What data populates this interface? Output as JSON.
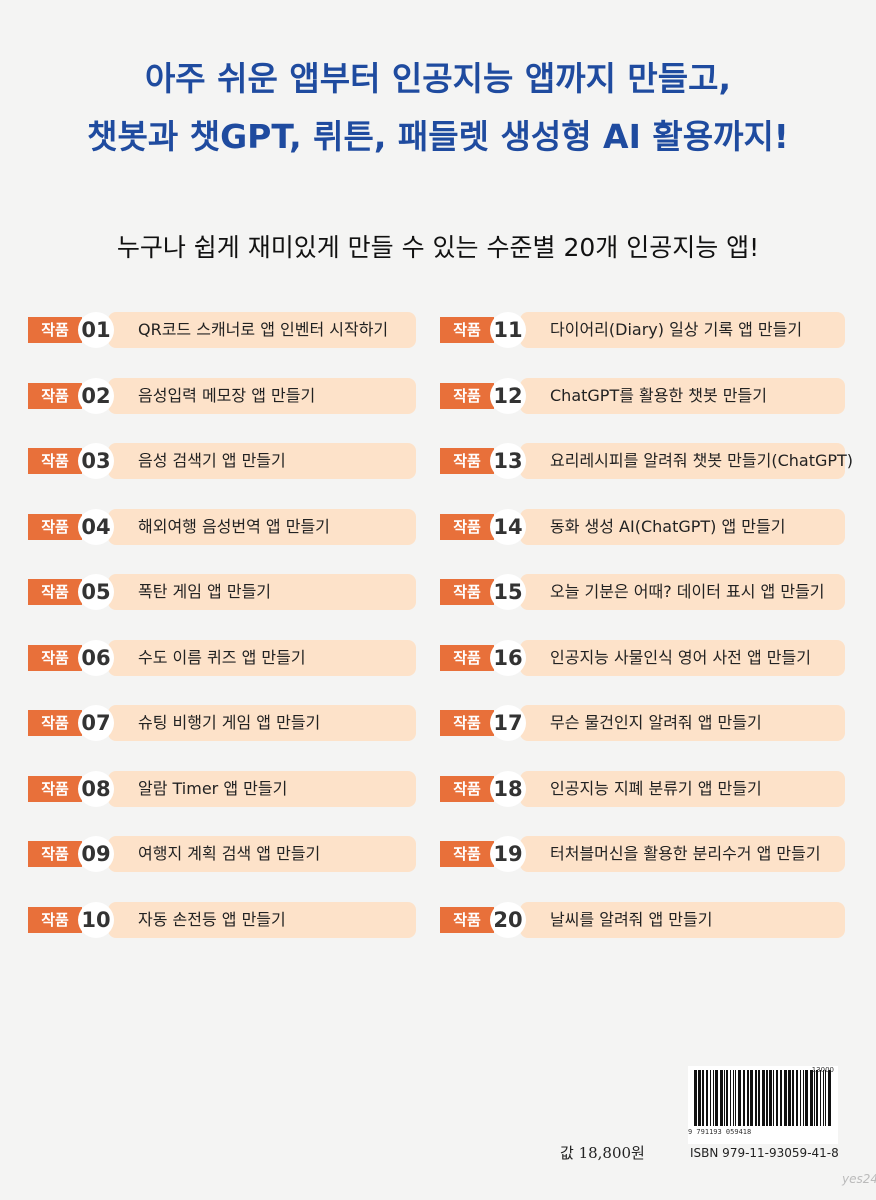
{
  "header": {
    "title_lines": [
      "아주 쉬운 앱부터 인공지능 앱까지 만들고,",
      "챗봇과 챗GPT, 뤼튼, 패들렛 생성형 AI 활용까지!"
    ],
    "subtitle": "누구나 쉽게 재미있게 만들 수 있는 수준별 20개 인공지능 앱!"
  },
  "items": [
    {
      "tag": "작품",
      "number": "01",
      "title": "QR코드 스캐너로 앱 인벤터 시작하기"
    },
    {
      "tag": "작품",
      "number": "02",
      "title": "음성입력 메모장 앱 만들기"
    },
    {
      "tag": "작품",
      "number": "03",
      "title": "음성 검색기 앱 만들기"
    },
    {
      "tag": "작품",
      "number": "04",
      "title": "해외여행 음성번역 앱 만들기"
    },
    {
      "tag": "작품",
      "number": "05",
      "title": "폭탄 게임 앱 만들기"
    },
    {
      "tag": "작품",
      "number": "06",
      "title": "수도 이름 퀴즈 앱 만들기"
    },
    {
      "tag": "작품",
      "number": "07",
      "title": "슈팅 비행기 게임 앱 만들기"
    },
    {
      "tag": "작품",
      "number": "08",
      "title": "알람 Timer 앱 만들기"
    },
    {
      "tag": "작품",
      "number": "09",
      "title": "여행지 계획 검색 앱 만들기"
    },
    {
      "tag": "작품",
      "number": "10",
      "title": "자동 손전등 앱 만들기"
    },
    {
      "tag": "작품",
      "number": "11",
      "title": "다이어리(Diary) 일상 기록 앱 만들기"
    },
    {
      "tag": "작품",
      "number": "12",
      "title": "ChatGPT를 활용한 챗봇 만들기"
    },
    {
      "tag": "작품",
      "number": "13",
      "title": "요리레시피를 알려줘 챗봇 만들기(ChatGPT)"
    },
    {
      "tag": "작품",
      "number": "14",
      "title": "동화 생성 AI(ChatGPT) 앱 만들기"
    },
    {
      "tag": "작품",
      "number": "15",
      "title": "오늘 기분은 어때? 데이터 표시 앱 만들기"
    },
    {
      "tag": "작품",
      "number": "16",
      "title": "인공지능 사물인식 영어 사전 앱 만들기"
    },
    {
      "tag": "작품",
      "number": "17",
      "title": "무슨 물건인지 알려줘 앱 만들기"
    },
    {
      "tag": "작품",
      "number": "18",
      "title": "인공지능 지폐 분류기 앱 만들기"
    },
    {
      "tag": "작품",
      "number": "19",
      "title": "터처블머신을 활용한 분리수거 앱 만들기"
    },
    {
      "tag": "작품",
      "number": "20",
      "title": "날씨를 알려줘 앱 만들기"
    }
  ],
  "footer": {
    "price": "값 18,800원",
    "barcode_digits": "9 791193 059418",
    "add_on": "13000",
    "isbn": "ISBN 979-11-93059-41-8",
    "watermark": "yes24"
  }
}
